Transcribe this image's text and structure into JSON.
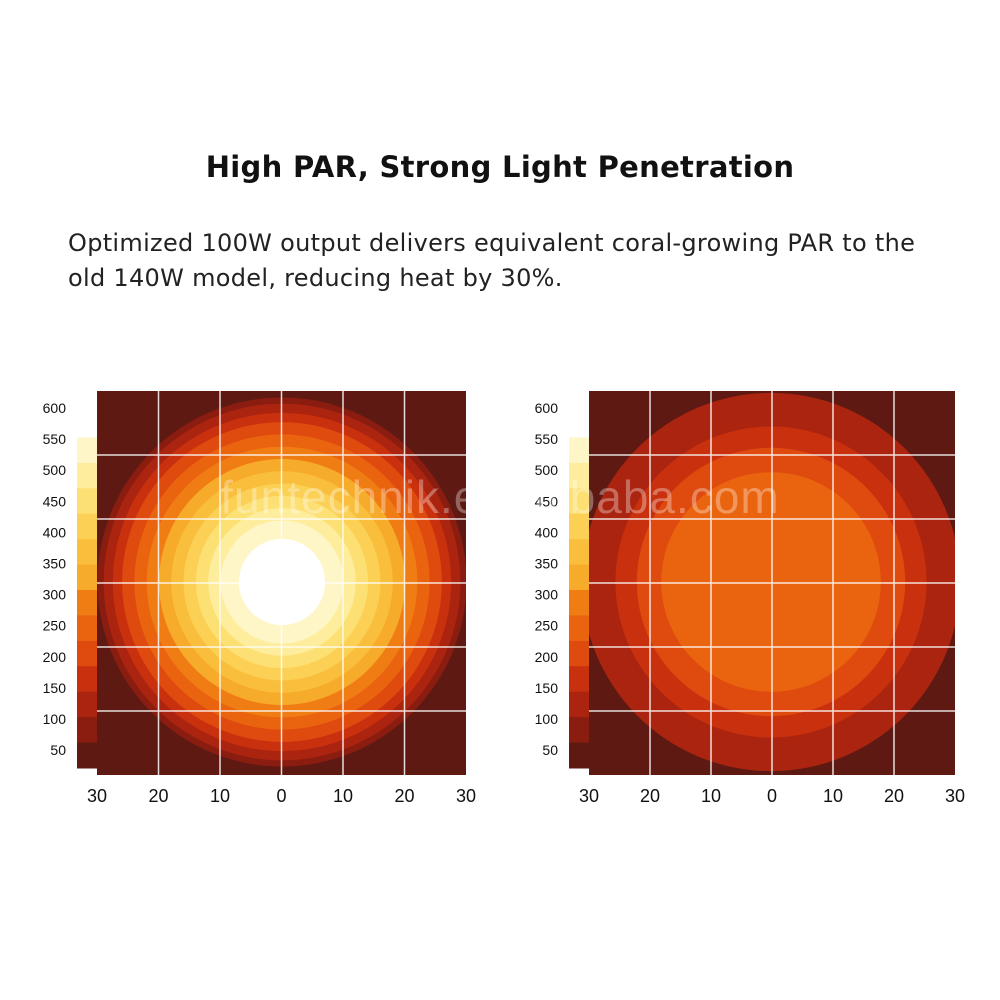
{
  "heading": "High PAR, Strong Light Penetration",
  "subtitle": "Optimized 100W output delivers equivalent coral-growing PAR to the old 140W model, reducing heat by 30%.",
  "watermark": "funtechnik.en.alibaba.com",
  "colors": {
    "background": "#5e1a12",
    "grid": "#ffffff",
    "scale": [
      "#5e1a12",
      "#8a1d10",
      "#ab2410",
      "#c8300e",
      "#df4a0e",
      "#ea6410",
      "#f07d14",
      "#f4951c",
      "#f7ab2a",
      "#f9bf3c",
      "#fbd054",
      "#fde074",
      "#feed9c",
      "#fff6c8",
      "#ffffff"
    ]
  },
  "chart_data": [
    {
      "type": "heatmap",
      "x_ticks": [
        "30",
        "20",
        "10",
        "0",
        "10",
        "20",
        "30"
      ],
      "colorbar_ticks": [
        "600",
        "550",
        "500",
        "450",
        "400",
        "350",
        "300",
        "250",
        "200",
        "150",
        "100",
        "50"
      ],
      "xlim": [
        -30,
        30
      ],
      "colorbar_range": [
        0,
        650
      ],
      "center_par": 650,
      "contours": [
        {
          "par": 50,
          "radius": 30
        },
        {
          "par": 100,
          "radius": 29
        },
        {
          "par": 150,
          "radius": 27.5
        },
        {
          "par": 200,
          "radius": 26
        },
        {
          "par": 250,
          "radius": 24
        },
        {
          "par": 300,
          "radius": 22
        },
        {
          "par": 350,
          "radius": 20
        },
        {
          "par": 400,
          "radius": 18
        },
        {
          "par": 450,
          "radius": 16
        },
        {
          "par": 500,
          "radius": 14
        },
        {
          "par": 550,
          "radius": 12
        },
        {
          "par": 600,
          "radius": 10
        },
        {
          "par": 650,
          "radius": 7
        }
      ]
    },
    {
      "type": "heatmap",
      "x_ticks": [
        "30",
        "20",
        "10",
        "0",
        "10",
        "20",
        "30"
      ],
      "colorbar_ticks": [
        "600",
        "550",
        "500",
        "450",
        "400",
        "350",
        "300",
        "250",
        "200",
        "150",
        "100",
        "50"
      ],
      "xlim": [
        -30,
        30
      ],
      "colorbar_range": [
        0,
        650
      ],
      "center_par": 300,
      "contours": [
        {
          "par": 100,
          "radius": 31
        },
        {
          "par": 150,
          "radius": 25.5
        },
        {
          "par": 200,
          "radius": 22
        },
        {
          "par": 250,
          "radius": 18
        }
      ]
    }
  ]
}
